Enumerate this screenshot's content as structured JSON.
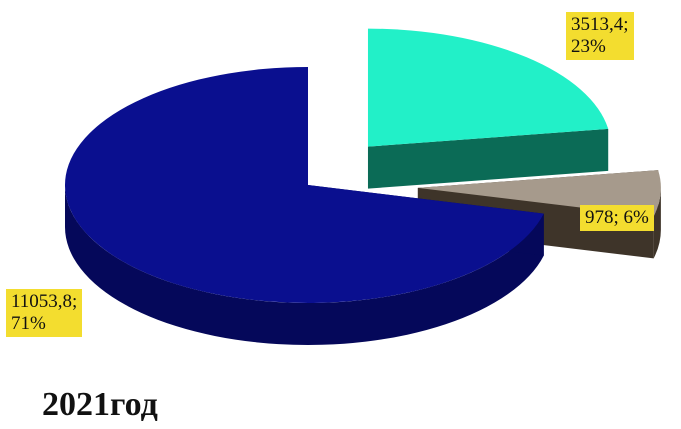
{
  "chart_data": {
    "type": "pie",
    "title": "2021год",
    "slices": [
      {
        "value": 11053.8,
        "percent": 71,
        "label_line1": "11053,8;",
        "label_line2": "71%",
        "color": "#0a0f8f",
        "side_color": "#05085a"
      },
      {
        "value": 3513.4,
        "percent": 23,
        "label_line1": "3513,4;",
        "label_line2": "23%",
        "color": "#22f0c8",
        "side_color": "#0b6b56"
      },
      {
        "value": 978,
        "percent": 6,
        "label_line1": "978; 6%",
        "label_line2": "",
        "color": "#a69a8c",
        "side_color": "#3e3429"
      }
    ],
    "label_background": "#f3dd2f",
    "legend": "none"
  }
}
